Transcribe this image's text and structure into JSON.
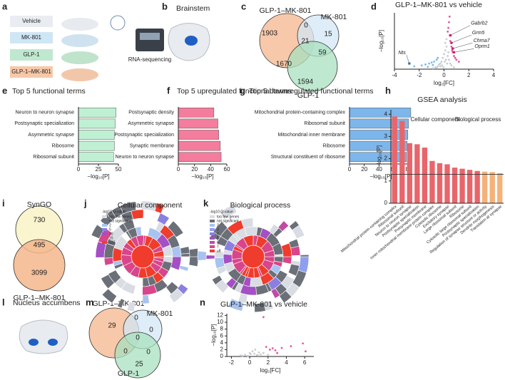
{
  "panel_letters": [
    "a",
    "b",
    "c",
    "d",
    "e",
    "f",
    "g",
    "h",
    "i",
    "j",
    "k",
    "l",
    "m",
    "n"
  ],
  "panel_a": {
    "groups": [
      "Vehicle",
      "MK-801",
      "GLP-1",
      "GLP-1–MK-801"
    ],
    "method": "RNA-sequencing"
  },
  "panel_b": {
    "title": "Brainstem"
  },
  "venn_c": {
    "sets": [
      "GLP-1–MK-801",
      "MK-801",
      "GLP-1"
    ],
    "counts": [
      1903,
      0,
      15,
      21,
      59,
      1670,
      1594
    ]
  },
  "venn_i": {
    "title": "SynGO",
    "sets": [
      "GLP-1–MK-801"
    ],
    "counts": [
      730,
      495,
      3099
    ]
  },
  "panel_j": {
    "title": "Cellular component",
    "legend": {
      "title": "-log10 Q-value",
      "items": [
        {
          "label": "too few genes",
          "color": "#d9dde3"
        },
        {
          "label": "not significant",
          "color": "#6b7078"
        },
        {
          "label": "2",
          "color": "#a9c3f0"
        },
        {
          "label": "5",
          "color": "#8b7fe0"
        },
        {
          "label": "10",
          "color": "#a44fc4"
        },
        {
          "label": "15",
          "color": "#d8458a"
        },
        {
          "label": "≥20",
          "color": "#f03c2c"
        }
      ]
    }
  },
  "panel_k": {
    "title": "Biological process",
    "legend": {
      "title": "-log10 Q-value",
      "items": [
        {
          "label": "too few genes",
          "color": "#d9dde3"
        },
        {
          "label": "not significant",
          "color": "#6b7078"
        },
        {
          "label": "2",
          "color": "#a9c3f0"
        },
        {
          "label": "3",
          "color": "#8f9ff0"
        },
        {
          "label": "4",
          "color": "#8b7fe0"
        },
        {
          "label": "5",
          "color": "#a44fc4"
        },
        {
          "label": "6",
          "color": "#c04aa8"
        },
        {
          "label": "7",
          "color": "#d8458a"
        },
        {
          "label": "≥8",
          "color": "#f03c2c"
        }
      ]
    }
  },
  "panel_l": {
    "title": "Nucleus accumbens"
  },
  "venn_m": {
    "sets": [
      "GLP-1–MK-801",
      "MK-801",
      "GLP-1"
    ],
    "counts": [
      29,
      0,
      0,
      0,
      0,
      0,
      25
    ]
  },
  "chart_data": [
    {
      "type": "scatter",
      "title": "GLP-1–MK-801 vs vehicle",
      "x_label": "log₂[FC]",
      "y_label": "−log₁₀[P]",
      "xlim": [
        -4,
        4
      ],
      "xticks": [
        -4,
        -2,
        0,
        2,
        4
      ],
      "ylim": [
        0,
        30
      ],
      "series": [
        {
          "color": "#c9cdd2",
          "x": [
            -0.9,
            -0.7,
            -0.5,
            -0.4,
            -0.3,
            -0.2,
            -0.1,
            0,
            0.1,
            0.2,
            0.3,
            0.4,
            0.5,
            0.6,
            0.8,
            -0.6,
            -0.3,
            0.1,
            0.2,
            0.35,
            -0.15,
            0.05,
            0.15,
            0.25,
            -0.05
          ],
          "values": [
            0.5,
            1,
            1.5,
            2.5,
            3,
            4,
            6,
            8,
            10,
            12,
            7,
            5,
            3,
            2,
            1,
            0.8,
            1.5,
            14,
            16,
            9,
            2,
            4,
            5,
            3,
            1
          ]
        },
        {
          "color": "#7fb8e8",
          "x": [
            -2.4,
            -1.8,
            -1.5,
            -1.2,
            -1.0,
            -0.8,
            -0.6,
            -0.5,
            -1.3,
            -0.9
          ],
          "values": [
            1.5,
            2,
            2.5,
            3,
            3.5,
            4,
            5,
            6,
            1.2,
            2.2
          ]
        },
        {
          "color": "#e4579a",
          "x": [
            0.3,
            0.4,
            0.5,
            0.6,
            0.7,
            0.8,
            0.9,
            1.0,
            1.2,
            0.45,
            0.55,
            0.35,
            0.65
          ],
          "values": [
            20,
            25,
            15,
            12,
            9,
            7,
            6,
            5,
            4,
            28,
            18,
            22,
            10
          ]
        },
        {
          "color": "#d81b72",
          "x": [
            0.5,
            0.6,
            0.7,
            0.8
          ],
          "values": [
            18,
            14,
            11,
            9
          ],
          "labels": [
            "Gabrb2",
            "Grm5",
            "Chrna7",
            "Oprm1"
          ]
        },
        {
          "color": "#2f7fd0",
          "x": [
            -2.8
          ],
          "values": [
            3
          ],
          "labels": [
            "Nts"
          ]
        }
      ]
    },
    {
      "type": "hbar",
      "title": "Top 5 functional terms",
      "x_label": "−log₁₀[P]",
      "color": "#bff0d3",
      "categories": [
        "Neuron to neuron synapse",
        "Postsynaptic specialization",
        "Asymmetric synapse",
        "Ribosome",
        "Ribosomal subunit"
      ],
      "values": [
        47,
        46,
        45,
        45,
        44
      ],
      "xlim": [
        0,
        50
      ],
      "xticks": [
        0,
        25,
        50
      ]
    },
    {
      "type": "hbar",
      "title": "Top 5 upregulated functional terms",
      "x_label": "−log₁₀[P]",
      "color": "#f47c9d",
      "categories": [
        "Postsynaptic density",
        "Asymmetric synapse",
        "Postsynaptic specialization",
        "Synaptic membrane",
        "Neuron to neuron synapse"
      ],
      "values": [
        44,
        49,
        50,
        52,
        53
      ],
      "xlim": [
        0,
        60
      ],
      "xticks": [
        0,
        20,
        40,
        60
      ]
    },
    {
      "type": "hbar",
      "title": "Top 5 downregulated functional terms",
      "x_label": "−log₁₀[P]",
      "color": "#7db6ea",
      "categories": [
        "Mitochondrial protein-containing complex",
        "Ribosomal subunit",
        "Mitochondrial inner membrane",
        "Ribosome",
        "Structural constituent of ribosome"
      ],
      "values": [
        83,
        80,
        79,
        78,
        77
      ],
      "xlim": [
        0,
        85
      ],
      "xticks": [
        0,
        20,
        40,
        60,
        80
      ]
    },
    {
      "type": "bar",
      "title": "GSEA analysis",
      "y_label": "−log₁₀[P]",
      "ylim": [
        0,
        4.2
      ],
      "yticks": [
        0,
        1,
        2,
        3,
        4
      ],
      "threshold": 1.3,
      "categories": [
        "Mitochondrial protein-containing complex",
        "Ribosomal subunit",
        "Neuron to neuron synapse",
        "Postsynaptic specialization",
        "Presynaptic membrane",
        "Inner mitochondrial membrane protein complex",
        "Cytosolic ribosome",
        "Excitatory synapse",
        "Large ribosomal subunit",
        "Ribosome",
        "Cytosolic large ribosomal subunit",
        "Postsynaptic specialization",
        "Regulation of synapse structure or activity",
        "Dendrite morphogenesis",
        "Translation at synapse"
      ],
      "series": [
        {
          "name": "Cellular component",
          "color": "#e8666b",
          "values": [
            3.9,
            3.7,
            2.7,
            2.65,
            2.5,
            1.9,
            1.8,
            1.75,
            1.6,
            1.55,
            1.5,
            1.45,
            null,
            null,
            null
          ]
        },
        {
          "name": "Biological process",
          "color": "#f4b27a",
          "values": [
            null,
            null,
            null,
            null,
            null,
            null,
            null,
            null,
            null,
            null,
            null,
            null,
            1.42,
            1.4,
            1.35
          ]
        }
      ]
    },
    {
      "type": "scatter",
      "title": "GLP-1–MK-801 vs vehicle",
      "x_label": "log₂[FC]",
      "y_label": "−log₁₀[P]",
      "xlim": [
        -2.5,
        7
      ],
      "xticks": [
        -2,
        0,
        2,
        4,
        6
      ],
      "ylim": [
        0,
        12.5
      ],
      "yticks": [
        0,
        2,
        4,
        6,
        8,
        10,
        12
      ],
      "series": [
        {
          "color": "#c9cdd2",
          "x": [
            -1,
            -0.5,
            0,
            0.3,
            0.5,
            0.8,
            1,
            1.2,
            -0.2,
            0.6,
            1.5,
            2,
            0.1,
            -0.8,
            0.9
          ],
          "values": [
            0.3,
            0.5,
            1,
            1.5,
            0.8,
            0.4,
            1.2,
            0.6,
            0.2,
            2,
            1,
            0.5,
            0.7,
            0.2,
            0.3
          ]
        },
        {
          "color": "#e4579a",
          "x": [
            1.5,
            2.2,
            2.8,
            3.5,
            4.5,
            5.8,
            6.1,
            3,
            1.8,
            2.5
          ],
          "values": [
            11.5,
            2,
            1.8,
            2.5,
            3,
            3.8,
            1.5,
            1,
            2.8,
            2.4
          ]
        }
      ]
    }
  ]
}
